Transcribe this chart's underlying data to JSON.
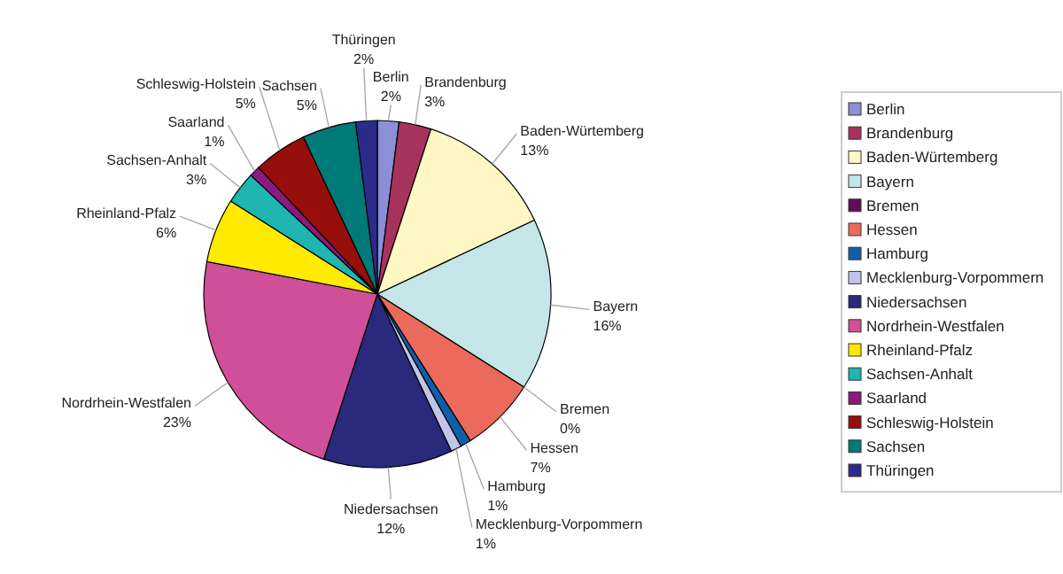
{
  "chart_data": {
    "type": "pie",
    "categories": [
      "Berlin",
      "Brandenburg",
      "Baden-Würtemberg",
      "Bayern",
      "Bremen",
      "Hessen",
      "Hamburg",
      "Mecklenburg-Vorpommern",
      "Niedersachsen",
      "Nordrhein-Westfalen",
      "Rheinland-Pfalz",
      "Sachsen-Anhalt",
      "Saarland",
      "Schleswig-Holstein",
      "Sachsen",
      "Thüringen"
    ],
    "values": [
      2,
      3,
      13,
      16,
      0,
      7,
      1,
      1,
      12,
      23,
      6,
      3,
      1,
      5,
      5,
      2
    ],
    "value_labels": [
      "2%",
      "3%",
      "13%",
      "16%",
      "0%",
      "7%",
      "1%",
      "1%",
      "12%",
      "23%",
      "6%",
      "3%",
      "1%",
      "5%",
      "5%",
      "2%"
    ],
    "colors": [
      "#8a8fd6",
      "#a8325e",
      "#fff8c4",
      "#c4e6e8",
      "#5c0f5c",
      "#ec6a5c",
      "#0f5fa8",
      "#c2c4e8",
      "#292a7c",
      "#cf4f98",
      "#ffea00",
      "#1fb5b0",
      "#8a1a80",
      "#960f0a",
      "#007a78",
      "#2b2b8c"
    ],
    "legend": "right"
  }
}
